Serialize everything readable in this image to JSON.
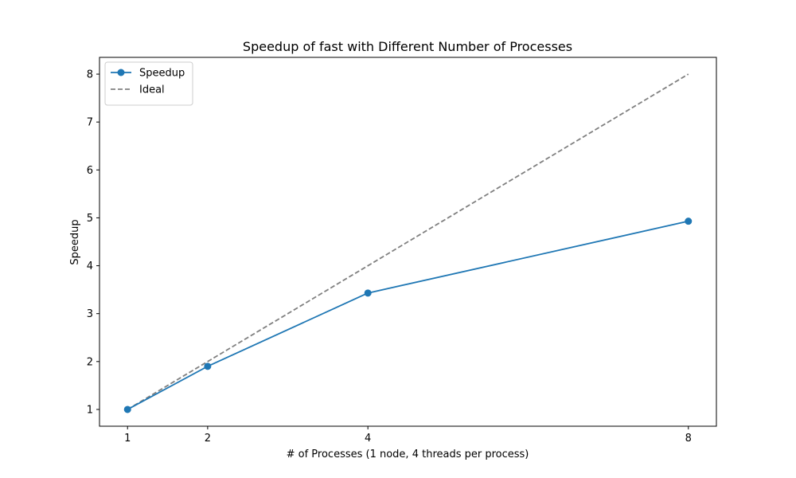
{
  "chart_data": {
    "type": "line",
    "title": "Speedup of fast with Different Number of Processes",
    "xlabel": "# of Processes (1 node, 4 threads per process)",
    "ylabel": "Speedup",
    "xlim": [
      0.65,
      8.35
    ],
    "ylim": [
      0.65,
      8.35
    ],
    "x_ticks": [
      1,
      2,
      4,
      8
    ],
    "y_ticks": [
      1,
      2,
      3,
      4,
      5,
      6,
      7,
      8
    ],
    "grid": false,
    "legend_position": "top-left",
    "series": [
      {
        "name": "Speedup",
        "x": [
          1,
          2,
          4,
          8
        ],
        "y": [
          1.0,
          1.9,
          3.43,
          4.93
        ],
        "color": "#1f77b4",
        "line_style": "solid",
        "marker": "circle"
      },
      {
        "name": "Ideal",
        "x": [
          1,
          2,
          4,
          8
        ],
        "y": [
          1,
          2,
          4,
          8
        ],
        "color": "#808080",
        "line_style": "dashed",
        "marker": "none"
      }
    ]
  }
}
